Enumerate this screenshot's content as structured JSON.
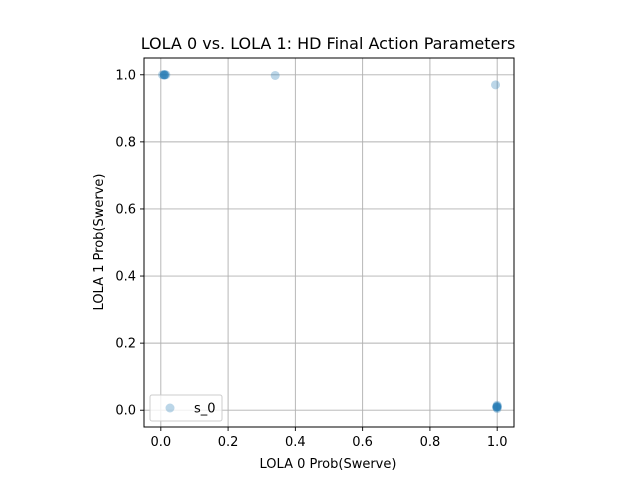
{
  "chart_data": {
    "type": "scatter",
    "title": "LOLA 0 vs. LOLA 1: HD Final Action Parameters",
    "xlabel": "LOLA 0 Prob(Swerve)",
    "ylabel": "LOLA 1 Prob(Swerve)",
    "xlim": [
      -0.05,
      1.05
    ],
    "ylim": [
      -0.05,
      1.05
    ],
    "x_ticks": [
      0.0,
      0.2,
      0.4,
      0.6,
      0.8,
      1.0
    ],
    "y_ticks": [
      0.0,
      0.2,
      0.4,
      0.6,
      0.8,
      1.0
    ],
    "x_tick_labels": [
      "0.0",
      "0.2",
      "0.4",
      "0.6",
      "0.8",
      "1.0"
    ],
    "y_tick_labels": [
      "0.0",
      "0.2",
      "0.4",
      "0.6",
      "0.8",
      "1.0"
    ],
    "grid": true,
    "legend_position": "lower-left",
    "series": [
      {
        "name": "s_0",
        "color": "#1f77b4",
        "alpha": 0.3,
        "points": [
          {
            "x": 0.01,
            "y": 1.0
          },
          {
            "x": 0.01,
            "y": 1.0
          },
          {
            "x": 0.015,
            "y": 1.0
          },
          {
            "x": 0.005,
            "y": 1.0
          },
          {
            "x": 0.01,
            "y": 0.999
          },
          {
            "x": 0.012,
            "y": 1.0
          },
          {
            "x": 0.34,
            "y": 0.998
          },
          {
            "x": 0.995,
            "y": 0.97
          },
          {
            "x": 1.0,
            "y": 0.01
          },
          {
            "x": 1.0,
            "y": 0.015
          },
          {
            "x": 0.998,
            "y": 0.01
          },
          {
            "x": 1.0,
            "y": 0.005
          },
          {
            "x": 1.0,
            "y": 0.012
          },
          {
            "x": 0.999,
            "y": 0.008
          },
          {
            "x": 1.0,
            "y": 0.01
          }
        ]
      }
    ]
  }
}
